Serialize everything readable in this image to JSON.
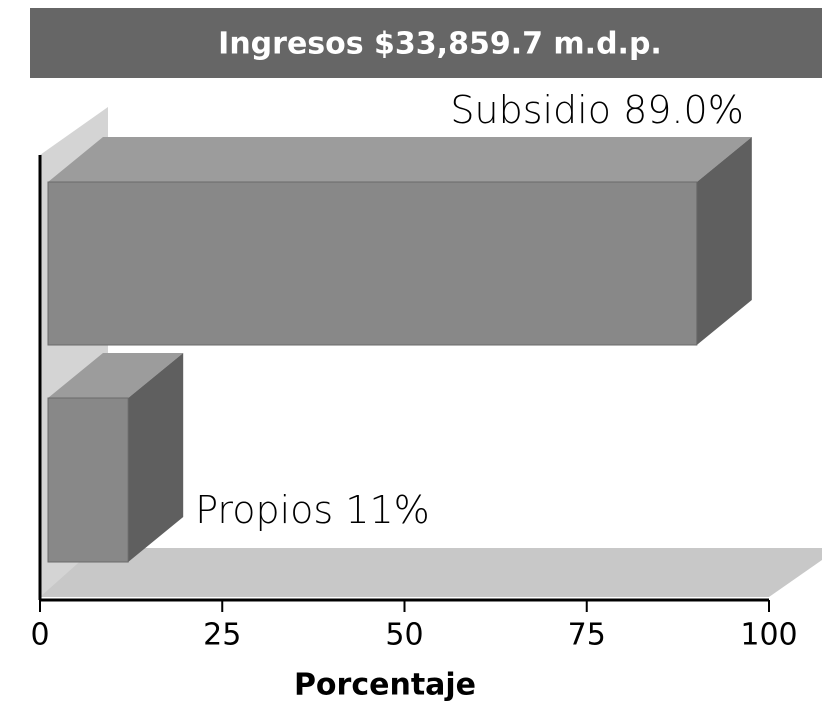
{
  "chart_data": {
    "type": "bar3d",
    "title": "Ingresos $33,859.7 m.d.p.",
    "categories": [
      "Subsidio",
      "Propios"
    ],
    "values": [
      89.0,
      11
    ],
    "value_labels": [
      "89.0%",
      "11%"
    ],
    "xlabel": "Porcentaje",
    "xlim": [
      0,
      100
    ],
    "xticks": [
      0,
      25,
      50,
      75,
      100
    ]
  }
}
